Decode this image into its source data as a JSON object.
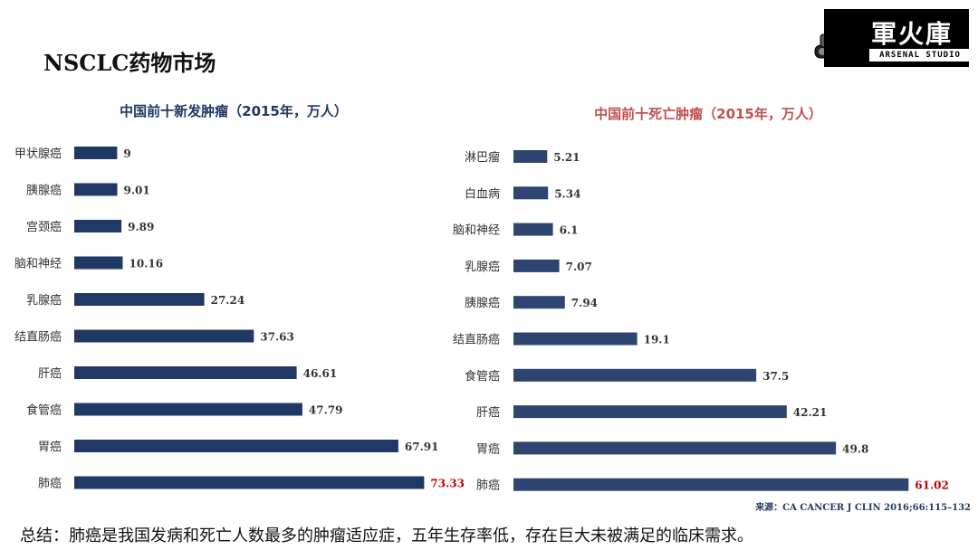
{
  "page": {
    "title": "NSCLC药物市场",
    "source": "来源：CA  CANCER  J CLIN  2016;66:115–132",
    "summary": "总结：肺癌是我国发病和死亡人数最多的肿瘤适应症，五年生存率低，存在巨大未被满足的临床需求。"
  },
  "logo": {
    "main_text": "軍火庫",
    "sub_text": "ARSENAL STUDIO",
    "icon": "tank-icon"
  },
  "colors": {
    "bar_left": "#1f3864",
    "bar_right": "#2d4570",
    "title_left": "#1f3864",
    "title_right": "#c0504d",
    "highlight_label": "#c00000",
    "label_text": "#333333"
  },
  "chart_data": [
    {
      "type": "bar",
      "orientation": "horizontal",
      "title": "中国前十新发肿瘤（2015年，万人）",
      "categories": [
        "甲状腺癌",
        "胰腺癌",
        "宫颈癌",
        "脑和神经",
        "乳腺癌",
        "结直肠癌",
        "肝癌",
        "食管癌",
        "胃癌",
        "肺癌"
      ],
      "values": [
        9,
        9.01,
        9.89,
        10.16,
        27.24,
        37.63,
        46.61,
        47.79,
        67.91,
        73.33
      ],
      "labels": [
        "9",
        "9.01",
        "9.89",
        "10.16",
        "27.24",
        "37.63",
        "46.61",
        "47.79",
        "67.91",
        "73.33"
      ],
      "highlight_index": 9,
      "xlim": [
        0,
        80
      ]
    },
    {
      "type": "bar",
      "orientation": "horizontal",
      "title": "中国前十死亡肿瘤（2015年，万人）",
      "categories": [
        "淋巴瘤",
        "白血病",
        "脑和神经",
        "乳腺癌",
        "胰腺癌",
        "结直肠癌",
        "食管癌",
        "肝癌",
        "胃癌",
        "肺癌"
      ],
      "values": [
        5.21,
        5.34,
        6.1,
        7.07,
        7.94,
        19.1,
        37.5,
        42.21,
        49.8,
        61.02
      ],
      "labels": [
        "5.21",
        "5.34",
        "6.1",
        "7.07",
        "7.94",
        "19.1",
        "37.5",
        "42.21",
        "49.8",
        "61.02"
      ],
      "highlight_index": 9,
      "xlim": [
        0,
        70
      ]
    }
  ]
}
